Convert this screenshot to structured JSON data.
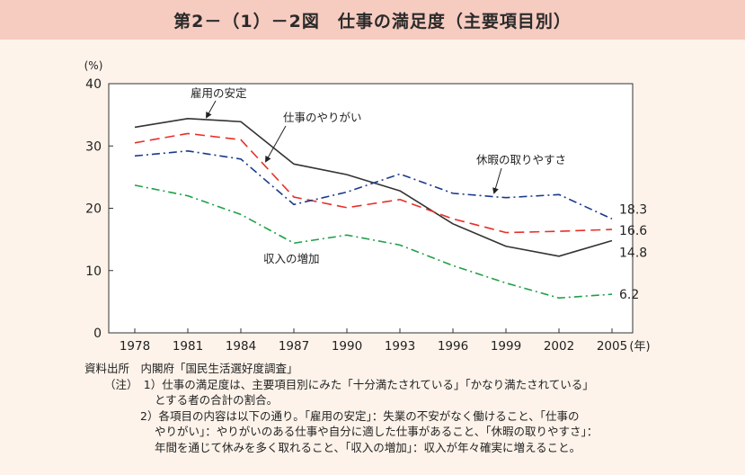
{
  "title": "第2－（1）－2図　仕事の満足度（主要項目別）",
  "chart_data": {
    "type": "line",
    "y_unit": "(%)",
    "x_unit": "(年)",
    "ylim": [
      0,
      40
    ],
    "yticks": [
      0,
      10,
      20,
      30,
      40
    ],
    "categories": [
      "1978",
      "1981",
      "1984",
      "1987",
      "1990",
      "1993",
      "1996",
      "1999",
      "2002",
      "2005"
    ],
    "grid": false,
    "series": [
      {
        "name": "雇用の安定",
        "color": "#333333",
        "dash": "",
        "values": [
          33.0,
          34.4,
          33.9,
          27.1,
          25.4,
          22.8,
          17.5,
          13.9,
          12.3,
          14.8
        ],
        "end_label": "14.8"
      },
      {
        "name": "仕事のやりがい",
        "color": "#e8302a",
        "dash": "11 6",
        "values": [
          30.5,
          32.0,
          31.0,
          21.8,
          20.1,
          21.4,
          18.3,
          16.1,
          16.3,
          16.6
        ],
        "end_label": "16.6"
      },
      {
        "name": "休暇の取りやすさ",
        "color": "#1b3a8c",
        "dash": "9 4 2 4",
        "values": [
          28.4,
          29.2,
          27.9,
          20.6,
          22.6,
          25.5,
          22.4,
          21.7,
          22.2,
          18.3
        ],
        "end_label": "18.3"
      },
      {
        "name": "収入の増加",
        "color": "#1fa04a",
        "dash": "9 4 2 4",
        "values": [
          23.7,
          22.0,
          19.0,
          14.4,
          15.7,
          14.1,
          10.8,
          8.0,
          5.6,
          6.2
        ],
        "end_label": "6.2"
      }
    ]
  },
  "notes": {
    "source": "資料出所　内閣府「国民生活選好度調査」",
    "note1_a": "（注）　1）仕事の満足度は、主要項目別にみた「十分満たされている」「かなり満たされている」",
    "note1_b": "とする者の合計の割合。",
    "note2_a": "2）各項目の内容は以下の通り。「雇用の安定」：失業の不安がなく働けること、「仕事の",
    "note2_b": "やりがい」：やりがいのある仕事や自分に適した仕事があること、「休暇の取りやすさ」：",
    "note2_c": "年間を通じて休みを多く取れること、「収入の増加」：収入が年々確実に増えること。"
  }
}
